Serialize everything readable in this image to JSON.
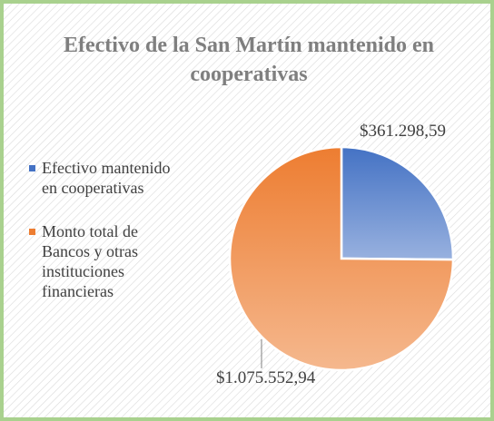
{
  "chart_data": {
    "type": "pie",
    "title": "Efectivo de la San Martín mantenido en cooperativas",
    "categories": [
      "Efectivo mantenido en cooperativas",
      "Monto total de Bancos y otras instituciones financieras"
    ],
    "values": [
      361298.59,
      1075552.94
    ],
    "value_labels": [
      "$361.298,59",
      "$1.075.552,94"
    ],
    "colors": [
      "#4472c4",
      "#ed7d31"
    ],
    "legend": "left"
  }
}
